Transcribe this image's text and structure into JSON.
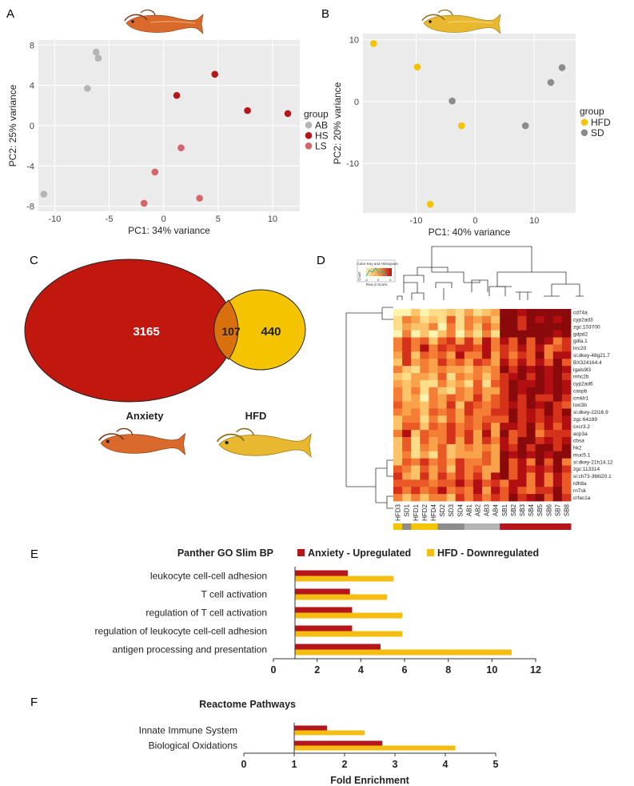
{
  "colors": {
    "AB": "#b4b4b4",
    "HS": "#b5161b",
    "LS": "#d4656c",
    "HFD": "#f5c400",
    "SD": "#8c8c8c",
    "anxiety_bar": "#b5161b",
    "hfd_bar": "#f5bd12",
    "venn_anxiety": "#c0170f",
    "venn_hfd": "#f5c400",
    "venn_overlap": "#d9700e",
    "panel_bg": "#ebebeb"
  },
  "panels": {
    "A": "A",
    "B": "B",
    "C": "C",
    "D": "D",
    "E": "E",
    "F": "F"
  },
  "icons": [
    "fish-icon-orange",
    "fish-icon-yellow"
  ],
  "venn": {
    "anxiety_only": "3165",
    "overlap": "107",
    "hfd_only": "440",
    "anxiety_label": "Anxiety",
    "hfd_label": "HFD"
  },
  "heatmap": {
    "key_title": "Color Key and Histogram",
    "key_xlabel": "Row Z-Score",
    "key_ylabel": "Count",
    "key_ticks": [
      "-4",
      "0",
      "4"
    ],
    "genes": [
      "cd74a",
      "cyp2ad3",
      "zgc:103700",
      "gdpd2",
      "gdla.1",
      "lrrc20",
      "si:dkey-48g21.7",
      "BX324164.4",
      "lgals9l3",
      "mhc2b",
      "cyp2ad6",
      "caspb",
      "cmklr1",
      "loxl3b",
      "si:dkey-22i16.9",
      "zgc:64189",
      "cxcr3.2",
      "acp3a",
      "cbsa",
      "hk2",
      "muc5.1",
      "si:dkey-21h14.12",
      "zgc:113314",
      "si:ch73-366i20.1",
      "rdh8a",
      "rn7sk",
      "crfac1a"
    ],
    "samples": [
      "HFD3",
      "SD1",
      "HFD1",
      "HFD2",
      "HFD4",
      "SD2",
      "SD3",
      "SD4",
      "AB1",
      "AB2",
      "AB3",
      "AB4",
      "SB1",
      "SB2",
      "SB3",
      "SB4",
      "SB5",
      "SB6",
      "SB7",
      "SB8"
    ],
    "sample_groups": [
      "HFD",
      "SD",
      "HFD",
      "HFD",
      "HFD",
      "SD",
      "SD",
      "SD",
      "AB",
      "AB",
      "AB",
      "AB",
      "HS",
      "HS",
      "HS",
      "HS",
      "HS",
      "HS",
      "HS",
      "HS"
    ]
  },
  "chart_data": [
    {
      "type": "scatter",
      "panel": "A",
      "xlabel": "PC1: 34% variance",
      "ylabel": "PC2: 25% variance",
      "xlim": [
        -11.5,
        12.5
      ],
      "ylim": [
        -8.5,
        8.5
      ],
      "xticks": [
        "-10",
        "-5",
        "0",
        "5",
        "10"
      ],
      "yticks": [
        "-8",
        "-4",
        "0",
        "4",
        "8"
      ],
      "legend_title": "group",
      "legend_position": "right",
      "series": [
        {
          "name": "AB",
          "points": [
            [
              -6.2,
              7.3
            ],
            [
              -6.0,
              6.7
            ],
            [
              -7.0,
              3.7
            ],
            [
              -11.0,
              -6.8
            ]
          ]
        },
        {
          "name": "HS",
          "points": [
            [
              4.7,
              5.1
            ],
            [
              1.2,
              3.0
            ],
            [
              7.7,
              1.5
            ],
            [
              11.4,
              1.2
            ]
          ]
        },
        {
          "name": "LS",
          "points": [
            [
              1.6,
              -2.2
            ],
            [
              -0.8,
              -4.6
            ],
            [
              3.3,
              -7.2
            ],
            [
              -1.8,
              -7.7
            ]
          ]
        }
      ]
    },
    {
      "type": "scatter",
      "panel": "B",
      "xlabel": "PC1: 40% variance",
      "ylabel": "PC2: 20% variance",
      "xlim": [
        -19,
        17
      ],
      "ylim": [
        -18,
        11
      ],
      "xticks": [
        "-10",
        "0",
        "10"
      ],
      "yticks": [
        "-10",
        "0",
        "10"
      ],
      "legend_title": "group",
      "legend_position": "right",
      "series": [
        {
          "name": "HFD",
          "points": [
            [
              -17.2,
              9.4
            ],
            [
              -9.8,
              5.6
            ],
            [
              -2.3,
              -3.9
            ],
            [
              -7.6,
              -16.6
            ]
          ]
        },
        {
          "name": "SD",
          "points": [
            [
              -3.9,
              0.1
            ],
            [
              8.5,
              -3.9
            ],
            [
              12.8,
              3.1
            ],
            [
              14.7,
              5.5
            ]
          ]
        }
      ]
    },
    {
      "type": "bar",
      "panel": "E",
      "title": "Panther GO Slim BP",
      "categories": [
        "leukocyte cell-cell adhesion",
        "T cell activation",
        "regulation of T cell activation",
        "regulation of leukocyte cell-cell adhesion",
        "antigen processing and presentation"
      ],
      "series": [
        {
          "name": "Anxiety - Upregulated",
          "values": [
            3.4,
            3.5,
            3.6,
            3.6,
            4.9
          ]
        },
        {
          "name": "HFD - Downregulated",
          "values": [
            5.5,
            5.2,
            5.9,
            5.9,
            10.9
          ]
        }
      ],
      "xlim": [
        0,
        12
      ],
      "xticks": [
        "0",
        "2",
        "4",
        "6",
        "8",
        "10",
        "12"
      ],
      "legend_position": "top"
    },
    {
      "type": "bar",
      "panel": "F",
      "title": "Reactome Pathways",
      "xlabel": "Fold Enrichment",
      "categories": [
        "Innate Immune System",
        "Biological Oxidations"
      ],
      "series": [
        {
          "name": "Anxiety - Upregulated",
          "values": [
            1.65,
            2.75
          ]
        },
        {
          "name": "HFD - Downregulated",
          "values": [
            2.4,
            4.2
          ]
        }
      ],
      "xlim": [
        0,
        5
      ],
      "xticks": [
        "0",
        "1",
        "2",
        "3",
        "4",
        "5"
      ]
    }
  ]
}
